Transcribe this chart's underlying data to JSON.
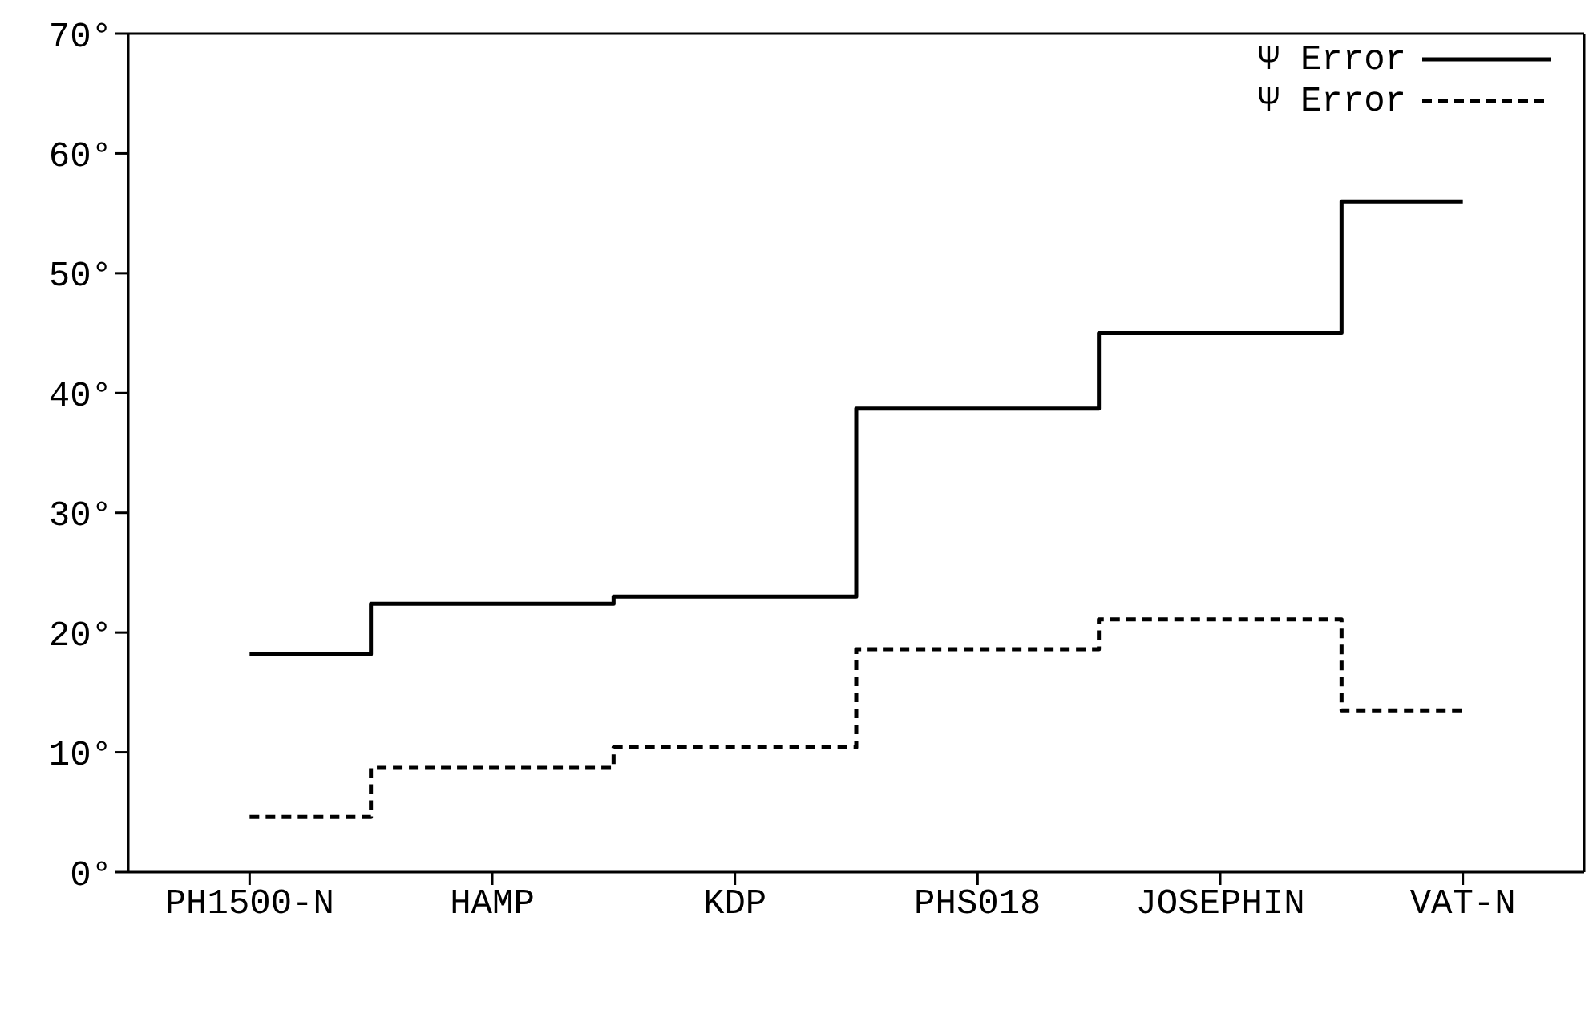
{
  "chart_data": {
    "type": "step",
    "categories": [
      "PH1500-N",
      "HAMP",
      "KDP",
      "PHS018",
      "JOSEPHIN",
      "VAT-N"
    ],
    "series": [
      {
        "name": "Ψ Error",
        "color": "#000000",
        "line_style": "solid",
        "values": [
          18.2,
          22.4,
          23.0,
          38.7,
          45.0,
          56.0
        ]
      },
      {
        "name": "Ψ Error",
        "color": "#000000",
        "line_style": "dashed",
        "values": [
          4.6,
          8.7,
          10.4,
          18.6,
          21.1,
          13.5
        ]
      }
    ],
    "ylim": [
      0,
      70
    ],
    "yticks": [
      {
        "value": 0,
        "label": "0°"
      },
      {
        "value": 10,
        "label": "10°"
      },
      {
        "value": 20,
        "label": "20°"
      },
      {
        "value": 30,
        "label": "30°"
      },
      {
        "value": 40,
        "label": "40°"
      },
      {
        "value": 50,
        "label": "50°"
      },
      {
        "value": 60,
        "label": "60°"
      },
      {
        "value": 70,
        "label": "70°"
      }
    ],
    "grid": false,
    "legend": "top right",
    "marker": "none"
  }
}
